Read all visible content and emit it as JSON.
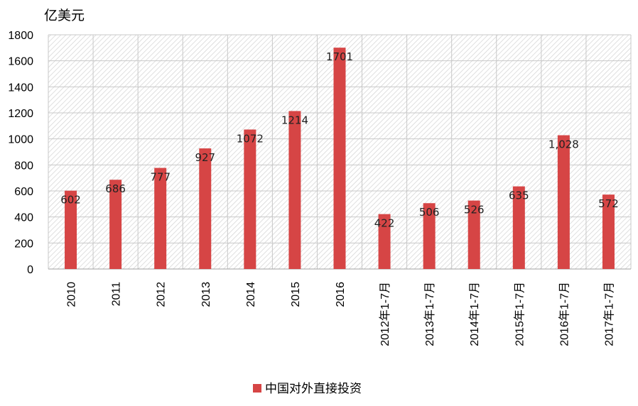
{
  "chart_data": {
    "type": "bar",
    "unit_label": "亿美元",
    "categories": [
      "2010",
      "2011",
      "2012",
      "2013",
      "2014",
      "2015",
      "2016",
      "2012年1-7月",
      "2013年1-7月",
      "2014年1-7月",
      "2015年1-7月",
      "2016年1-7月",
      "2017年1-7月"
    ],
    "series": [
      {
        "name": "中国对外直接投资",
        "values": [
          602,
          686,
          777,
          927,
          1072,
          1214,
          1701,
          422,
          506,
          526,
          635,
          1028,
          572
        ],
        "value_labels": [
          "602",
          "686",
          "777",
          "927",
          "1072",
          "1214",
          "1701",
          "422",
          "506",
          "526",
          "635",
          "1,028",
          "572"
        ],
        "color": "#d64545"
      }
    ],
    "ylim": [
      0,
      1800
    ],
    "yticks": [
      "0",
      "200",
      "400",
      "600",
      "800",
      "1000",
      "1200",
      "1400",
      "1600",
      "1800"
    ],
    "grid": true,
    "legend": "bottom",
    "background_pattern": "diagonal-hatch"
  }
}
